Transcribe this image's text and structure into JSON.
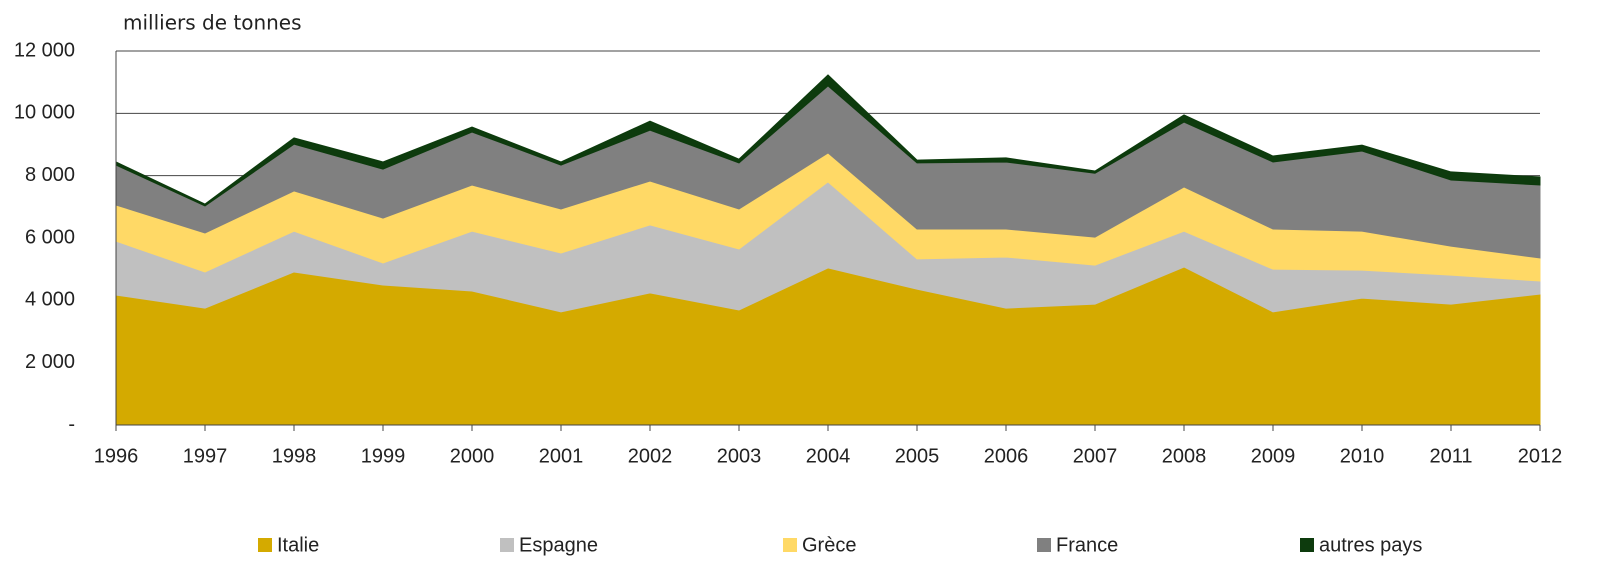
{
  "chart_data": {
    "type": "stacked_area",
    "y_axis_label": "milliers de tonnes",
    "categories": [
      "1996",
      "1997",
      "1998",
      "1999",
      "2000",
      "2001",
      "2002",
      "2003",
      "2004",
      "2005",
      "2006",
      "2007",
      "2008",
      "2009",
      "2010",
      "2011",
      "2012"
    ],
    "series": [
      {
        "name": "Italie",
        "color": "#d4aa00",
        "values": [
          4170,
          3750,
          4910,
          4490,
          4300,
          3630,
          4240,
          3690,
          5040,
          4360,
          3750,
          3880,
          5070,
          3630,
          4070,
          3880,
          4200
        ]
      },
      {
        "name": "Espagne",
        "color": "#c0c0c0",
        "values": [
          1730,
          1160,
          1310,
          710,
          1920,
          1890,
          2180,
          1960,
          2760,
          970,
          1640,
          1250,
          1150,
          1370,
          900,
          930,
          420
        ]
      },
      {
        "name": "Grèce",
        "color": "#ffd966",
        "values": [
          1160,
          1250,
          1290,
          1440,
          1480,
          1410,
          1410,
          1280,
          930,
          960,
          900,
          900,
          1420,
          1290,
          1250,
          930,
          740
        ]
      },
      {
        "name": "France",
        "color": "#808080",
        "values": [
          1280,
          870,
          1500,
          1570,
          1700,
          1410,
          1630,
          1480,
          2150,
          2120,
          2150,
          2050,
          2080,
          2150,
          2570,
          2120,
          2340
        ]
      },
      {
        "name": "autres pays",
        "color": "#0d3b0d",
        "values": [
          100,
          60,
          200,
          230,
          160,
          100,
          290,
          120,
          350,
          90,
          130,
          70,
          230,
          190,
          190,
          260,
          260
        ]
      }
    ],
    "ylim": [
      0,
      12000
    ],
    "yticks": [
      {
        "value": 0,
        "label": "-"
      },
      {
        "value": 2000,
        "label": "2 000"
      },
      {
        "value": 4000,
        "label": "4 000"
      },
      {
        "value": 6000,
        "label": "6 000"
      },
      {
        "value": 8000,
        "label": "8 000"
      },
      {
        "value": 10000,
        "label": "10 000"
      },
      {
        "value": 12000,
        "label": "12 000"
      }
    ],
    "grid": true,
    "legend": "bottom"
  }
}
